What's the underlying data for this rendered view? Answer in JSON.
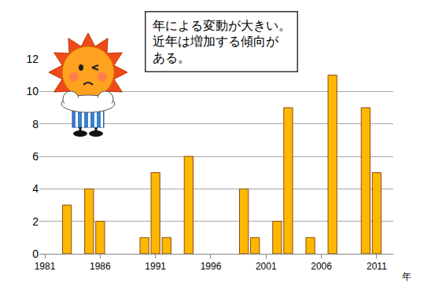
{
  "chart_data": {
    "type": "bar",
    "x": [
      1983,
      1985,
      1986,
      1990,
      1991,
      1992,
      1994,
      1999,
      2000,
      2002,
      2003,
      2005,
      2007,
      2010,
      2011
    ],
    "values": [
      3,
      4,
      2,
      1,
      5,
      1,
      6,
      4,
      1,
      2,
      9,
      1,
      11,
      9,
      5
    ],
    "color": "#ffb800",
    "xlabel": "年",
    "xlim": [
      1980.5,
      2012.5
    ],
    "xticks": [
      1981,
      1986,
      1991,
      1996,
      2001,
      2006,
      2011
    ],
    "ylim": [
      0,
      12
    ],
    "yticks": [
      0,
      2,
      4,
      6,
      8,
      10,
      12
    ],
    "grid": true,
    "annotations": [
      {
        "text": "年による変動が大きい。\n近年は増加する傾向が\nある。"
      }
    ]
  }
}
